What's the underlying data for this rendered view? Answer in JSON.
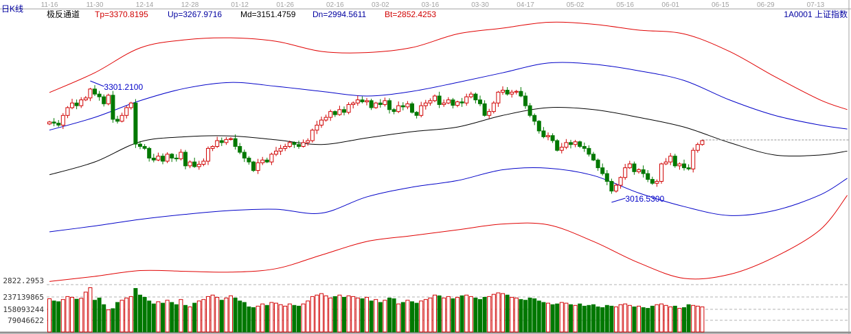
{
  "header": {
    "period_label": "日K线",
    "indicator_name": "极反通道",
    "tp": "Tp=3370.8195",
    "up": "Up=3267.9716",
    "md": "Md=3151.4759",
    "dn": "Dn=2994.5611",
    "bt": "Bt=2852.4253",
    "symbol": "1A0001  上证指数"
  },
  "colors": {
    "up": "#d00000",
    "down": "#007800",
    "tp": "#e00000",
    "upper": "#0000c8",
    "mid": "#000000",
    "label_blue": "#0000a0"
  },
  "chart_data": {
    "type": "candlestick",
    "date_ticks": [
      "11-16",
      "11-30",
      "12-14",
      "12-28",
      "01-12",
      "01-26",
      "02-16",
      "03-02",
      "03-16",
      "03-30",
      "04-17",
      "05-02",
      "05-16",
      "06-01",
      "06-15",
      "06-29",
      "07-13"
    ],
    "date_tick_index": [
      0,
      10,
      21,
      31,
      42,
      52,
      63,
      73,
      84,
      95,
      105,
      116,
      127,
      137,
      148,
      158,
      169
    ],
    "first_open": 3208,
    "closes": [
      3213,
      3210,
      3205,
      3230,
      3250,
      3262,
      3255,
      3270,
      3275,
      3298,
      3285,
      3278,
      3260,
      3282,
      3220,
      3215,
      3230,
      3250,
      3262,
      3156,
      3150,
      3145,
      3120,
      3115,
      3125,
      3112,
      3130,
      3120,
      3118,
      3135,
      3100,
      3110,
      3098,
      3104,
      3112,
      3145,
      3150,
      3165,
      3160,
      3168,
      3170,
      3150,
      3135,
      3120,
      3110,
      3088,
      3108,
      3115,
      3110,
      3130,
      3138,
      3145,
      3150,
      3160,
      3155,
      3150,
      3160,
      3165,
      3192,
      3205,
      3218,
      3225,
      3240,
      3232,
      3245,
      3238,
      3258,
      3262,
      3270,
      3265,
      3268,
      3250,
      3262,
      3258,
      3268,
      3245,
      3240,
      3255,
      3252,
      3260,
      3238,
      3230,
      3255,
      3262,
      3268,
      3280,
      3258,
      3262,
      3270,
      3256,
      3265,
      3262,
      3278,
      3285,
      3270,
      3260,
      3230,
      3240,
      3262,
      3290,
      3295,
      3285,
      3290,
      3292,
      3280,
      3255,
      3230,
      3215,
      3190,
      3175,
      3178,
      3165,
      3140,
      3148,
      3160,
      3155,
      3162,
      3150,
      3145,
      3130,
      3115,
      3095,
      3080,
      3060,
      3035,
      3050,
      3070,
      3095,
      3105,
      3085,
      3090,
      3080,
      3065,
      3055,
      3060,
      3105,
      3110,
      3125,
      3100,
      3105,
      3095,
      3092,
      3140,
      3155,
      3165
    ],
    "volumes_millions": [
      225,
      210,
      205,
      220,
      240,
      235,
      222,
      228,
      270,
      300,
      215,
      230,
      185,
      150,
      158,
      200,
      215,
      230,
      240,
      295,
      250,
      235,
      210,
      190,
      205,
      195,
      215,
      200,
      185,
      220,
      180,
      170,
      195,
      210,
      220,
      240,
      250,
      235,
      215,
      230,
      245,
      230,
      210,
      200,
      170,
      165,
      175,
      190,
      180,
      200,
      195,
      185,
      175,
      190,
      180,
      175,
      190,
      210,
      240,
      250,
      260,
      245,
      230,
      240,
      250,
      235,
      245,
      240,
      230,
      225,
      235,
      210,
      220,
      200,
      215,
      230,
      225,
      190,
      200,
      215,
      205,
      195,
      210,
      220,
      230,
      250,
      245,
      230,
      240,
      225,
      235,
      245,
      250,
      240,
      230,
      220,
      235,
      240,
      255,
      265,
      260,
      250,
      235,
      230,
      220,
      215,
      230,
      225,
      210,
      200,
      195,
      185,
      190,
      200,
      195,
      185,
      180,
      190,
      175,
      180,
      185,
      170,
      165,
      180,
      175,
      170,
      185,
      190,
      180,
      170,
      175,
      165,
      160,
      175,
      185,
      190,
      180,
      170,
      175,
      160,
      165,
      185,
      180,
      175,
      170
    ],
    "bands_index": [
      0,
      10,
      20,
      30,
      40,
      50,
      60,
      70,
      80,
      90,
      100,
      110,
      120,
      130,
      140,
      150,
      160,
      170,
      176
    ],
    "bands": {
      "tp": [
        3289,
        3340,
        3404,
        3425,
        3430,
        3421,
        3395,
        3392,
        3405,
        3440,
        3455,
        3470,
        3465,
        3450,
        3440,
        3395,
        3330,
        3270,
        3245
      ],
      "up": [
        3192,
        3225,
        3268,
        3300,
        3315,
        3305,
        3292,
        3280,
        3292,
        3315,
        3340,
        3365,
        3362,
        3345,
        3320,
        3270,
        3230,
        3205,
        3195
      ],
      "md": [
        3077,
        3110,
        3162,
        3175,
        3177,
        3167,
        3155,
        3172,
        3188,
        3200,
        3230,
        3250,
        3245,
        3225,
        3200,
        3160,
        3128,
        3128,
        3138
      ],
      "dn": [
        2930,
        2945,
        2962,
        2975,
        2985,
        2988,
        2978,
        3020,
        3045,
        3062,
        3090,
        3094,
        3075,
        3030,
        2995,
        2972,
        2985,
        3025,
        3068
      ],
      "bt": [
        2802,
        2815,
        2830,
        2828,
        2826,
        2835,
        2870,
        2905,
        2920,
        2935,
        2950,
        2948,
        2905,
        2850,
        2810,
        2820,
        2865,
        2935,
        3024
      ]
    },
    "high_marker": {
      "index": 9,
      "label": "3301.2100"
    },
    "low_marker": {
      "index": 124,
      "label": "3016.5300"
    },
    "price_axis_label": "2822.2953",
    "volume_axis_labels": [
      "237139865",
      "158093244",
      "79046622"
    ]
  }
}
